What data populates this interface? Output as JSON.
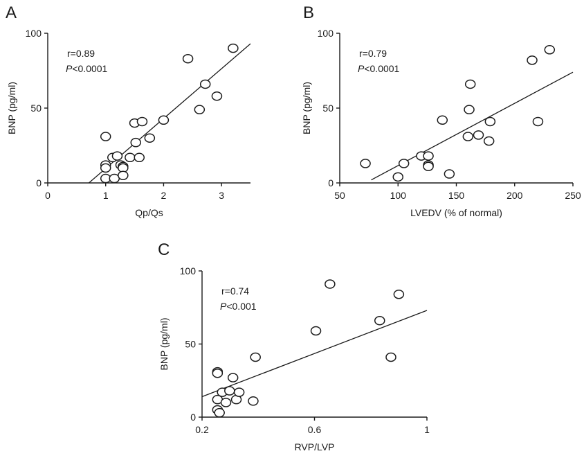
{
  "chart_data": [
    {
      "panel": "A",
      "type": "scatter",
      "xlabel": "Qp/Qs",
      "ylabel": "BNP (pg/ml)",
      "xlim": [
        0,
        3.5
      ],
      "ylim": [
        0,
        100
      ],
      "xticks": [
        0,
        1,
        2,
        3
      ],
      "yticks": [
        0,
        50,
        100
      ],
      "annotation_r": "r=0.89",
      "annotation_p_letter": "P",
      "annotation_p_rest": "<0.0001",
      "fit_line": [
        [
          0.71,
          0
        ],
        [
          3.5,
          93
        ]
      ],
      "points": [
        [
          1.0,
          31
        ],
        [
          1.0,
          12
        ],
        [
          1.0,
          10
        ],
        [
          1.0,
          3
        ],
        [
          1.12,
          17
        ],
        [
          1.15,
          3
        ],
        [
          1.2,
          18
        ],
        [
          1.26,
          12
        ],
        [
          1.3,
          11
        ],
        [
          1.3,
          10
        ],
        [
          1.3,
          5
        ],
        [
          1.42,
          17
        ],
        [
          1.5,
          40
        ],
        [
          1.52,
          27
        ],
        [
          1.58,
          17
        ],
        [
          1.63,
          41
        ],
        [
          1.76,
          30
        ],
        [
          2.0,
          42
        ],
        [
          2.42,
          83
        ],
        [
          2.62,
          49
        ],
        [
          2.72,
          66
        ],
        [
          2.92,
          58
        ],
        [
          3.2,
          90
        ]
      ]
    },
    {
      "panel": "B",
      "type": "scatter",
      "xlabel": "LVEDV  (% of  normal)",
      "ylabel": "BNP (pg/ml)",
      "xlim": [
        50,
        250
      ],
      "ylim": [
        0,
        100
      ],
      "xticks": [
        50,
        100,
        150,
        200,
        250
      ],
      "yticks": [
        0,
        50,
        100
      ],
      "annotation_r": "r=0.79",
      "annotation_p_letter": "P",
      "annotation_p_rest": "<0.0001",
      "fit_line": [
        [
          77,
          2
        ],
        [
          250,
          74
        ]
      ],
      "points": [
        [
          72,
          13
        ],
        [
          100,
          4
        ],
        [
          105,
          13
        ],
        [
          120,
          18
        ],
        [
          126,
          18
        ],
        [
          126,
          12
        ],
        [
          126,
          11
        ],
        [
          138,
          42
        ],
        [
          144,
          6
        ],
        [
          160,
          31
        ],
        [
          161,
          49
        ],
        [
          162,
          66
        ],
        [
          169,
          32
        ],
        [
          178,
          28
        ],
        [
          179,
          41
        ],
        [
          215,
          82
        ],
        [
          220,
          41
        ],
        [
          230,
          89
        ]
      ]
    },
    {
      "panel": "C",
      "type": "scatter",
      "xlabel": "RVP/LVP",
      "ylabel": "BNP (pg/ml)",
      "xlim": [
        0.2,
        1.0
      ],
      "ylim": [
        0,
        100
      ],
      "xticks": [
        0.2,
        0.6,
        1
      ],
      "xticklabels": [
        "0.2",
        "0.6",
        "1"
      ],
      "yticks": [
        0,
        50,
        100
      ],
      "annotation_r": "r=0.74",
      "annotation_p_letter": "P",
      "annotation_p_rest": "<0.001",
      "fit_line": [
        [
          0.2,
          14
        ],
        [
          1.0,
          73
        ]
      ],
      "points": [
        [
          0.255,
          31
        ],
        [
          0.255,
          30
        ],
        [
          0.255,
          12
        ],
        [
          0.255,
          5
        ],
        [
          0.262,
          3
        ],
        [
          0.272,
          17
        ],
        [
          0.285,
          10
        ],
        [
          0.298,
          18
        ],
        [
          0.31,
          27
        ],
        [
          0.322,
          12
        ],
        [
          0.332,
          17
        ],
        [
          0.382,
          11
        ],
        [
          0.39,
          41
        ],
        [
          0.605,
          59
        ],
        [
          0.655,
          91
        ],
        [
          0.832,
          66
        ],
        [
          0.872,
          41
        ],
        [
          0.9,
          84
        ]
      ]
    }
  ]
}
